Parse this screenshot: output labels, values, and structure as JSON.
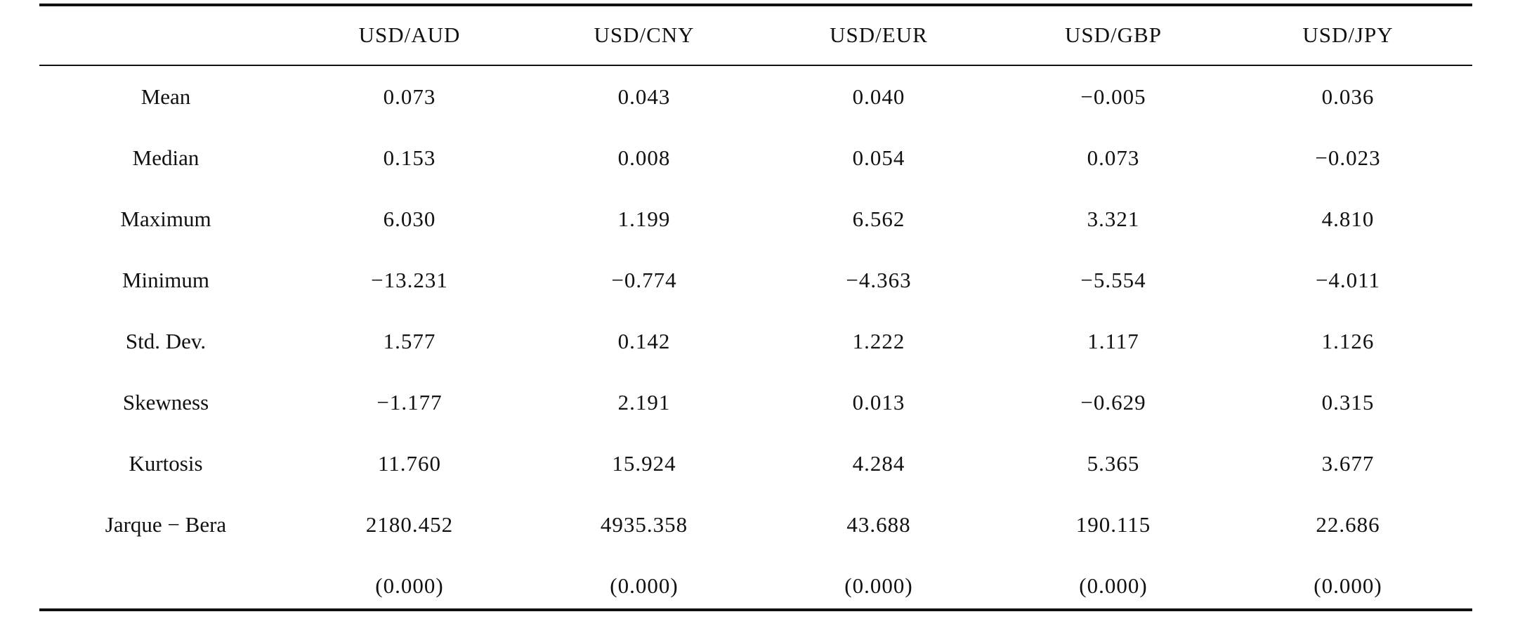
{
  "table": {
    "columns": [
      "",
      "USD/AUD",
      "USD/CNY",
      "USD/EUR",
      "USD/GBP",
      "USD/JPY"
    ],
    "rows": [
      {
        "label": "Mean",
        "values": [
          "0.073",
          "0.043",
          "0.040",
          "−0.005",
          "0.036"
        ]
      },
      {
        "label": "Median",
        "values": [
          "0.153",
          "0.008",
          "0.054",
          "0.073",
          "−0.023"
        ]
      },
      {
        "label": "Maximum",
        "values": [
          "6.030",
          "1.199",
          "6.562",
          "3.321",
          "4.810"
        ]
      },
      {
        "label": "Minimum",
        "values": [
          "−13.231",
          "−0.774",
          "−4.363",
          "−5.554",
          "−4.011"
        ]
      },
      {
        "label": "Std. Dev.",
        "values": [
          "1.577",
          "0.142",
          "1.222",
          "1.117",
          "1.126"
        ]
      },
      {
        "label": "Skewness",
        "values": [
          "−1.177",
          "2.191",
          "0.013",
          "−0.629",
          "0.315"
        ]
      },
      {
        "label": "Kurtosis",
        "values": [
          "11.760",
          "15.924",
          "4.284",
          "5.365",
          "3.677"
        ]
      },
      {
        "label": "Jarque − Bera",
        "values": [
          "2180.452",
          "4935.358",
          "43.688",
          "190.115",
          "22.686"
        ]
      },
      {
        "label": "",
        "values": [
          "(0.000)",
          "(0.000)",
          "(0.000)",
          "(0.000)",
          "(0.000)"
        ]
      }
    ]
  }
}
